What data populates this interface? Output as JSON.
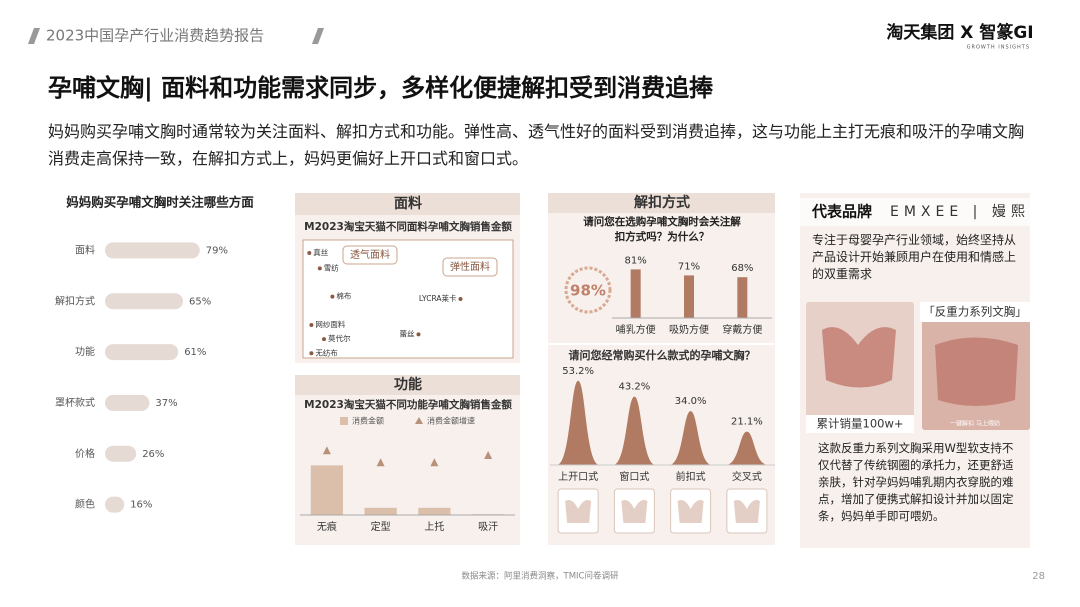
{
  "header": {
    "report": "2023中国孕产行业消费趋势报告",
    "logo": "淘天集团 X 智篆GI",
    "logo_sub": "GROWTH INSIGHTS"
  },
  "title": "孕哺文胸| 面料和功能需求同步，多样化便捷解扣受到消费追捧",
  "intro": "妈妈购买孕哺文胸时通常较为关注面料、解扣方式和功能。弹性高、透气性好的面料受到消费追捧，这与功能上主打无痕和吸汗的孕哺文胸消费走高保持一致，在解扣方式上，妈妈更偏好上开口式和窗口式。",
  "chart_data": [
    {
      "type": "barh",
      "title": "妈妈购买孕哺文胸时关注哪些方面",
      "categories": [
        "面料",
        "解扣方式",
        "功能",
        "罩杯款式",
        "价格",
        "颜色"
      ],
      "values": [
        79,
        65,
        61,
        37,
        26,
        16
      ],
      "value_labels": [
        "79%",
        "65%",
        "61%",
        "37%",
        "26%",
        "16%"
      ],
      "color": "#e6dad4",
      "xlim": [
        0,
        100
      ]
    },
    {
      "type": "scatter",
      "panel": "面料",
      "title": "M2023淘宝天猫不同面料孕哺文胸销售金额",
      "labels": [
        "真丝",
        "雪纺",
        "棉布",
        "网纱面料",
        "莫代尔",
        "无纺布",
        "LYCRA莱卡",
        "蕾丝"
      ],
      "x": [
        3,
        8,
        14,
        4,
        10,
        4,
        75,
        55
      ],
      "y": [
        89,
        76,
        52,
        28,
        16,
        4,
        50,
        20
      ],
      "xlim": [
        0,
        100
      ],
      "ylim": [
        0,
        100
      ],
      "color": "#8b5a44",
      "annotations": [
        "透气面料",
        "弹性面料"
      ]
    },
    {
      "type": "bar",
      "panel": "功能",
      "title": "M2023淘宝天猫不同功能孕哺文胸销售金额",
      "categories": [
        "无痕",
        "定型",
        "上托",
        "吸汗"
      ],
      "series": [
        {
          "name": "消费金额",
          "color": "#dcbfaa",
          "values": [
            62,
            9,
            9,
            1
          ]
        },
        {
          "name": "消费金额增速",
          "color": "#b8917a",
          "marker": "triangle",
          "values": [
            81,
            66,
            66,
            75
          ]
        }
      ],
      "ylim": [
        0,
        100
      ]
    },
    {
      "type": "bar",
      "panel": "解扣方式",
      "title": "请问您在选购孕哺文胸时会关注解扣方式吗？为什么？",
      "highlight": "98%",
      "categories": [
        "哺乳方便",
        "吸奶方便",
        "穿戴方便"
      ],
      "values": [
        81,
        71,
        68
      ],
      "value_labels": [
        "81%",
        "71%",
        "68%"
      ],
      "color": "#b07a63",
      "ylim": [
        0,
        100
      ]
    },
    {
      "type": "area",
      "title": "请问您经常购买什么款式的孕哺文胸？",
      "categories": [
        "上开口式",
        "窗口式",
        "前扣式",
        "交叉式"
      ],
      "values": [
        53.2,
        43.2,
        34.0,
        21.1
      ],
      "value_labels": [
        "53.2%",
        "43.2%",
        "34.0%",
        "21.1%"
      ],
      "color": "#b07a63",
      "ylim": [
        0,
        60
      ]
    }
  ],
  "brand": {
    "label": "代表品牌",
    "name": "EMXEE | 嫚熙",
    "desc": "专注于母婴孕产行业领域，始终坚持从产品设计开始兼顾用户在使用和情感上的双重需求",
    "product": "「反重力系列文胸」",
    "sales": "累计销量100w+",
    "tag": "一键解扣 马上喂奶",
    "detail": "这款反重力系列文胸采用W型软支持不仅代替了传统钢圈的承托力，还更舒适亲肤，针对孕妈妈哺乳期内衣穿脱的难点，增加了便携式解扣设计并加以固定条，妈妈单手即可喂奶。"
  },
  "footer": {
    "source": "数据来源：阿里消费洞察，TMIC问卷调研",
    "page": "28"
  }
}
